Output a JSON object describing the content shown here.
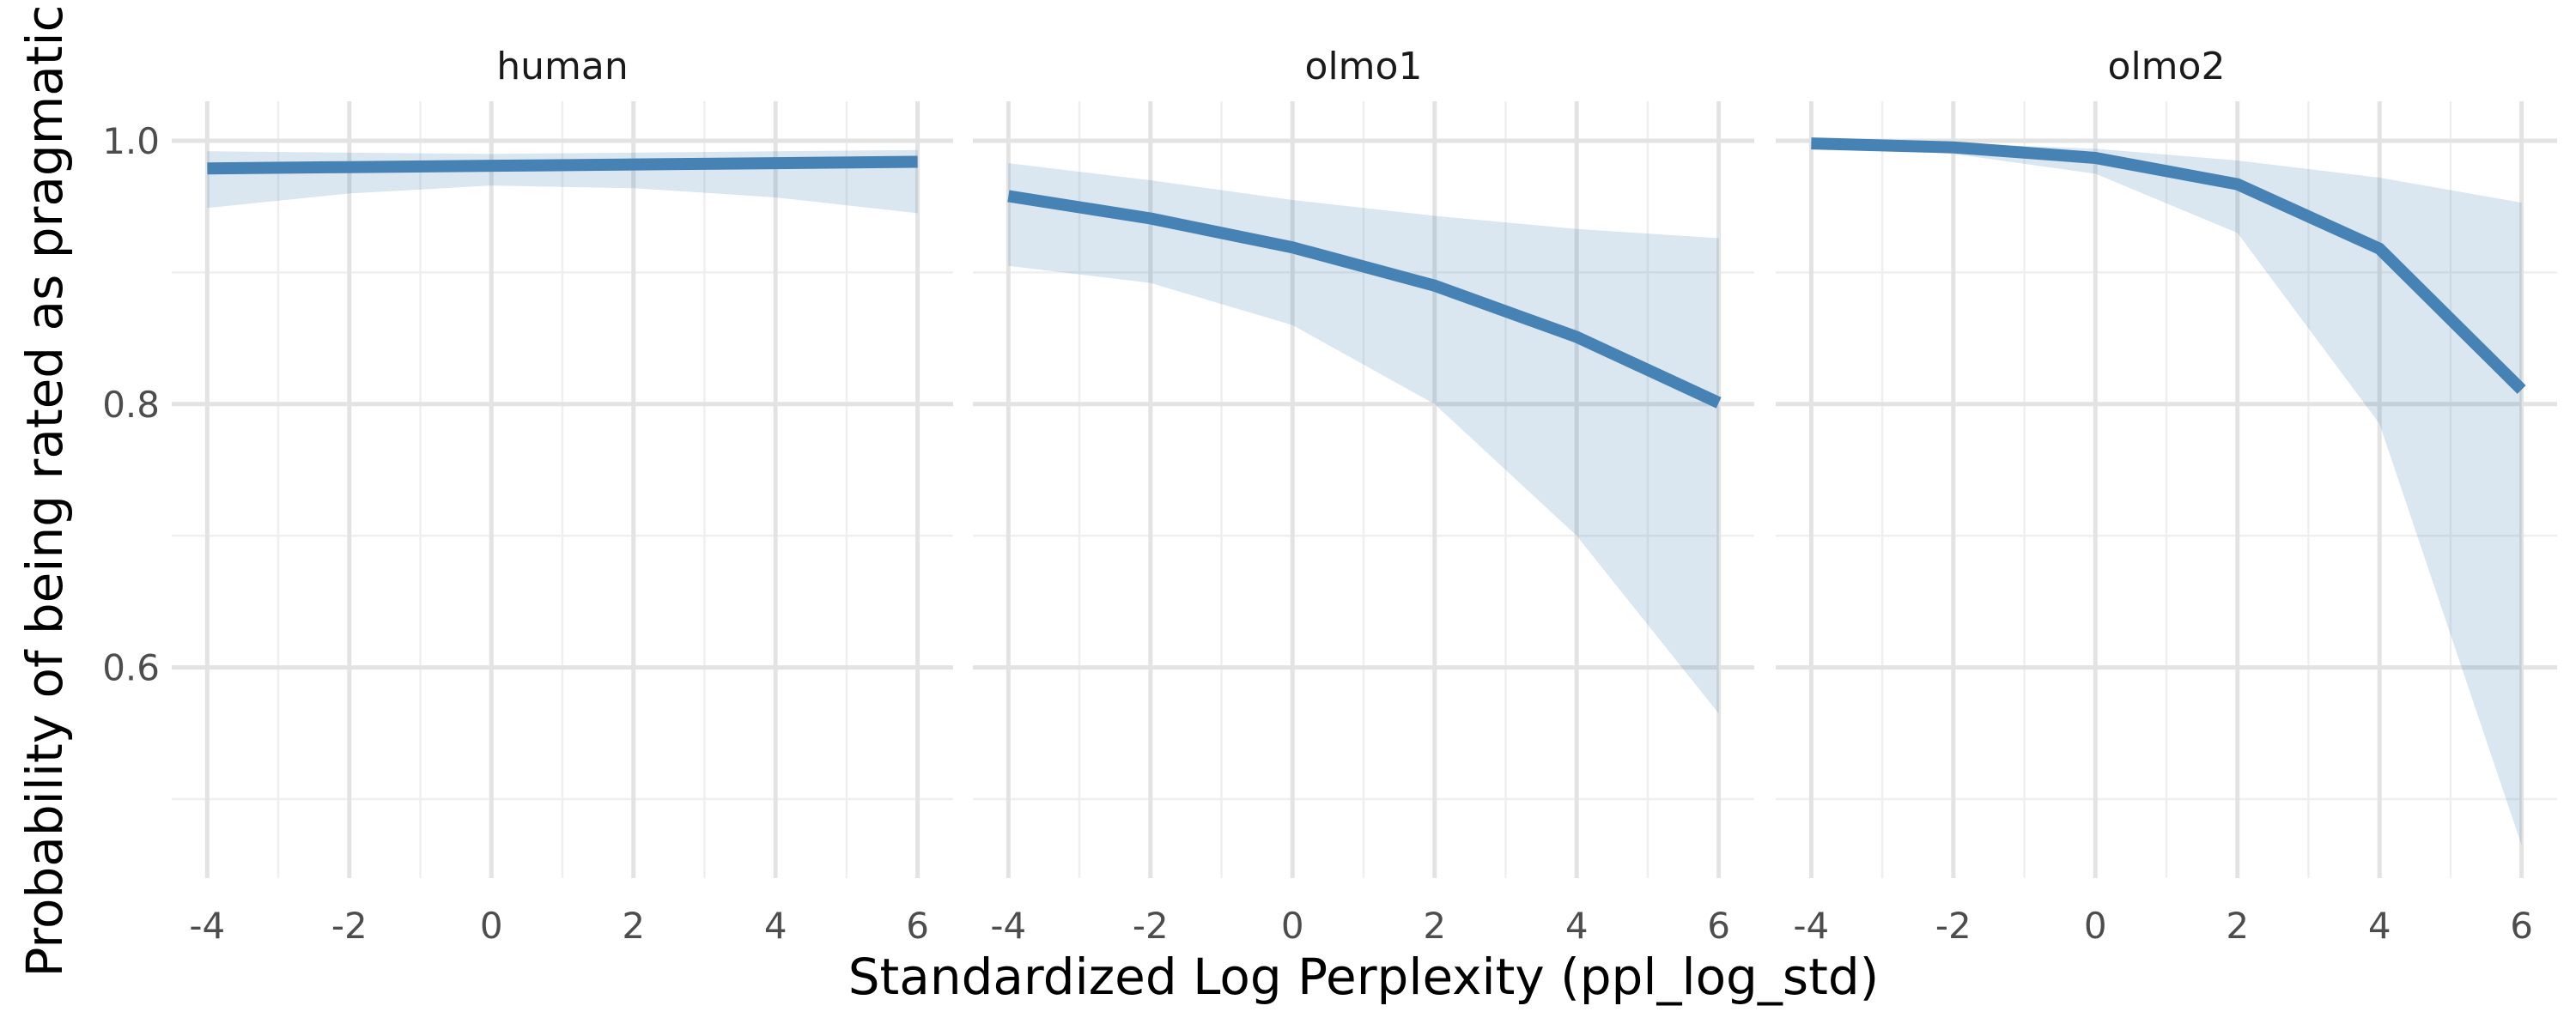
{
  "chart_data": {
    "type": "line",
    "xlabel": "Standardized Log Perplexity (ppl_log_std)",
    "ylabel": "Probability of being rated as pragmatic",
    "xlim": [
      -4.5,
      6.5
    ],
    "ylim": [
      0.44,
      1.03
    ],
    "x_ticks": [
      -4,
      -2,
      0,
      2,
      4,
      6
    ],
    "x_tick_labels": [
      "-4",
      "-2",
      "0",
      "2",
      "4",
      "6"
    ],
    "y_ticks": [
      0.6,
      0.8,
      1.0
    ],
    "y_tick_labels": [
      "0.6",
      "0.8",
      "1.0"
    ],
    "grid": true,
    "line_color": "#4682b4",
    "ribbon_color": "#4682b4",
    "panels": [
      {
        "label": "human",
        "x": [
          -4,
          -2,
          0,
          2,
          4,
          6
        ],
        "y": [
          0.979,
          0.98,
          0.981,
          0.982,
          0.983,
          0.984
        ],
        "lower": [
          0.949,
          0.96,
          0.966,
          0.964,
          0.957,
          0.945
        ],
        "upper": [
          0.992,
          0.991,
          0.99,
          0.991,
          0.992,
          0.993
        ]
      },
      {
        "label": "olmo1",
        "x": [
          -4,
          -2,
          0,
          2,
          4,
          6
        ],
        "y": [
          0.958,
          0.941,
          0.919,
          0.89,
          0.851,
          0.801
        ],
        "lower": [
          0.905,
          0.892,
          0.86,
          0.8,
          0.7,
          0.565
        ],
        "upper": [
          0.983,
          0.97,
          0.955,
          0.943,
          0.933,
          0.926
        ]
      },
      {
        "label": "olmo2",
        "x": [
          -4,
          -2,
          0,
          2,
          4,
          6
        ],
        "y": [
          0.998,
          0.995,
          0.987,
          0.967,
          0.918,
          0.811
        ],
        "lower": [
          0.997,
          0.99,
          0.975,
          0.93,
          0.785,
          0.465
        ],
        "upper": [
          0.999,
          0.998,
          0.994,
          0.985,
          0.972,
          0.953
        ]
      }
    ]
  }
}
